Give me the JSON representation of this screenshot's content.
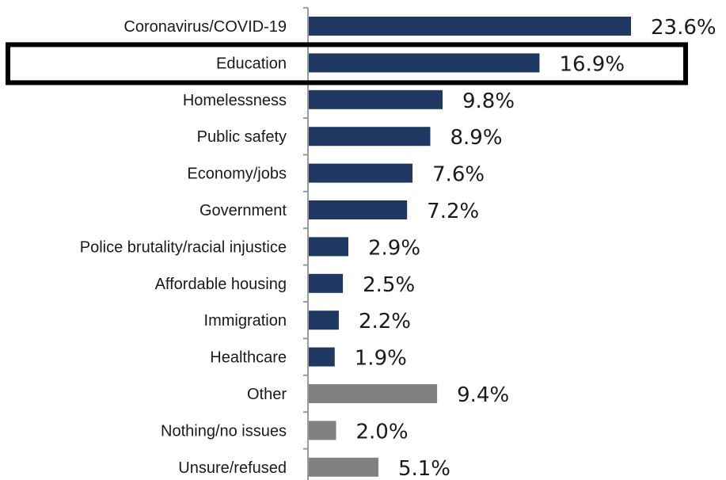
{
  "chart_data": {
    "type": "bar",
    "orientation": "horizontal",
    "title": "",
    "xlabel": "",
    "ylabel": "",
    "categories": [
      "Coronavirus/COVID-19",
      "Education",
      "Homelessness",
      "Public safety",
      "Economy/jobs",
      "Government",
      "Police brutality/racial injustice",
      "Affordable housing",
      "Immigration",
      "Healthcare",
      "Other",
      "Nothing/no issues",
      "Unsure/refused"
    ],
    "values": [
      23.6,
      16.9,
      9.8,
      8.9,
      7.6,
      7.2,
      2.9,
      2.5,
      2.2,
      1.9,
      9.4,
      2.0,
      5.1
    ],
    "value_labels": [
      "23.6%",
      "16.9%",
      "9.8%",
      "8.9%",
      "7.6%",
      "7.2%",
      "2.9%",
      "2.5%",
      "2.2%",
      "1.9%",
      "9.4%",
      "2.0%",
      "5.1%"
    ],
    "bar_groups": [
      "issue",
      "issue",
      "issue",
      "issue",
      "issue",
      "issue",
      "issue",
      "issue",
      "issue",
      "issue",
      "other",
      "other",
      "other"
    ],
    "colors": {
      "issue": "#1f3864",
      "other": "#808080",
      "axis": "#999999",
      "highlight_box": "#000000"
    },
    "highlighted_category": "Education",
    "xlim": [
      0,
      25
    ],
    "grid": false,
    "legend": "none"
  }
}
